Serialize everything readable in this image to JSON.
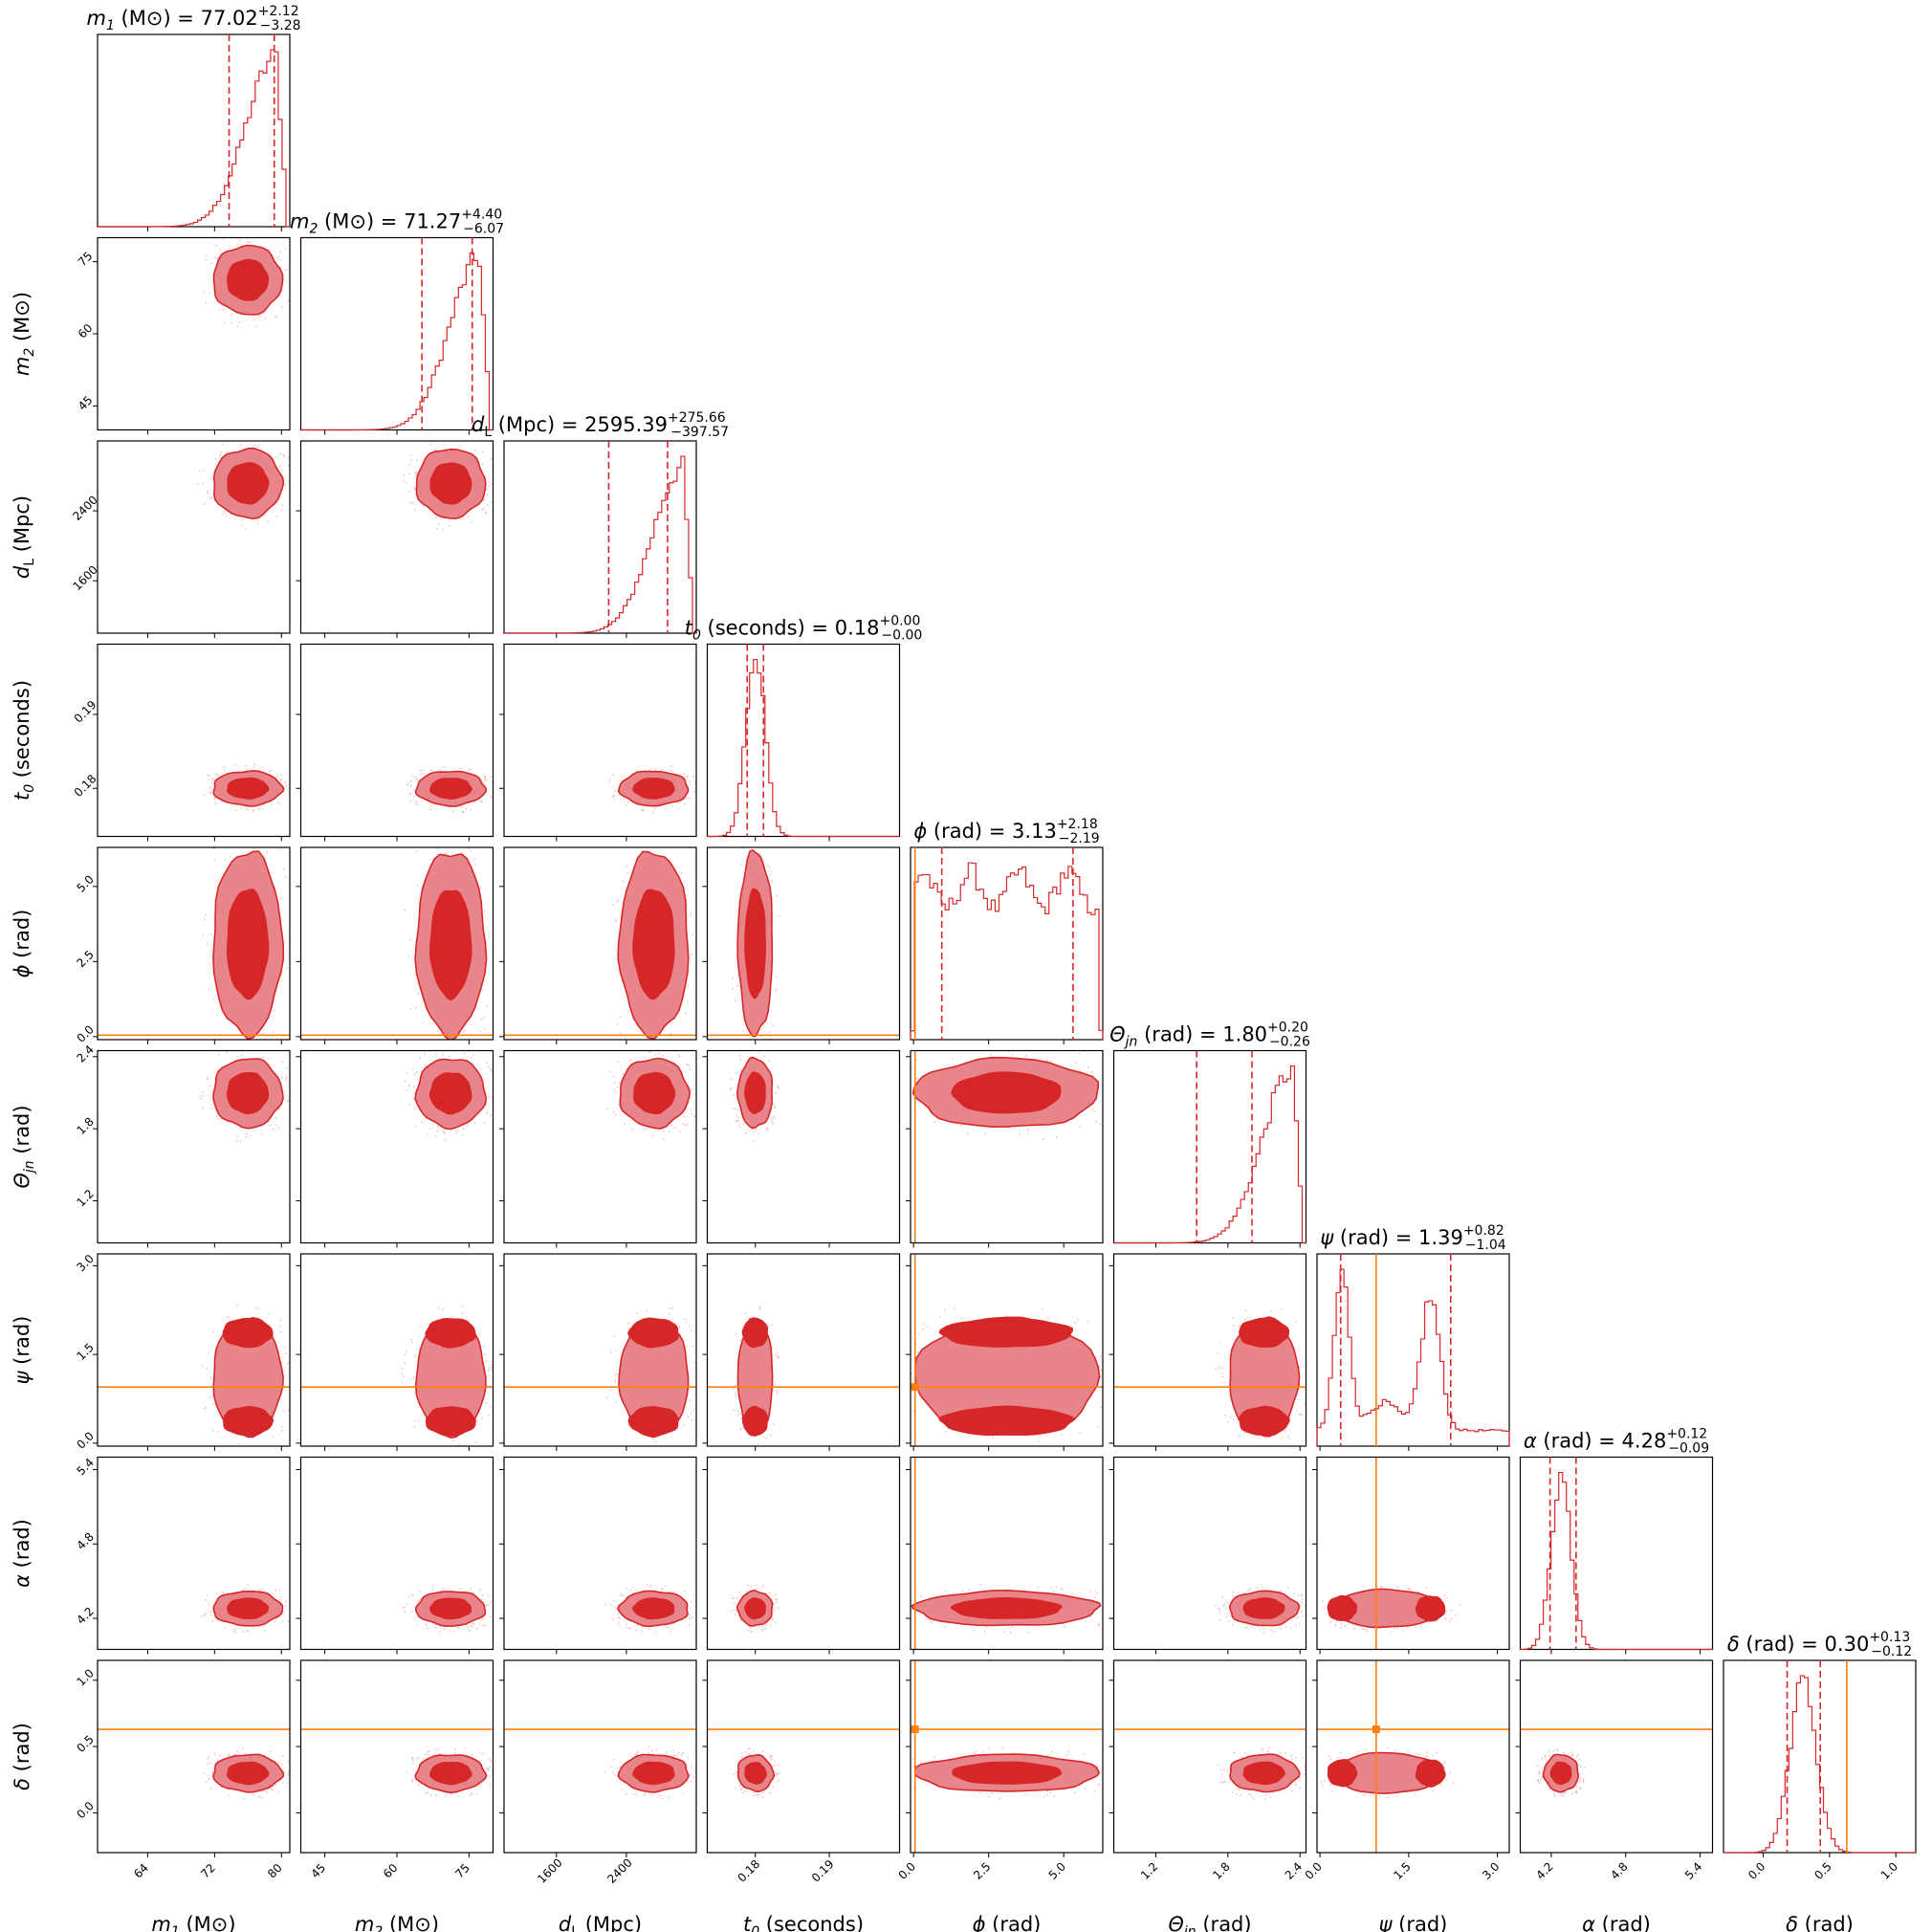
{
  "chart_data": {
    "type": "corner",
    "description_parameters": [
      {
        "key": "m1",
        "label": "m_1 (M_⊙)",
        "title": "m_1 (M_⊙) = 77.02 +2.12 -3.28",
        "median": 77.02,
        "err_plus": 2.12,
        "err_minus": 3.28,
        "range": [
          58,
          81
        ],
        "ticks": [
          64,
          72,
          80
        ],
        "mode": "right",
        "sigma": 4.5,
        "truth": null
      },
      {
        "key": "m2",
        "label": "m_2 (M_⊙)",
        "title": "m_2 (M_⊙) = 71.27 +4.40 -6.07",
        "median": 71.27,
        "err_plus": 4.4,
        "err_minus": 6.07,
        "range": [
          40,
          80
        ],
        "ticks": [
          45,
          60,
          75
        ],
        "mode": "right",
        "sigma": 6,
        "truth": null
      },
      {
        "key": "dL",
        "label": "d_L (Mpc)",
        "title": "d_L (Mpc) = 2595.39 +275.66 -397.57",
        "median": 2595.39,
        "err_plus": 275.66,
        "err_minus": 397.57,
        "range": [
          1000,
          3200
        ],
        "ticks": [
          1600,
          2400
        ],
        "mode": "right",
        "sigma": 420,
        "truth": null
      },
      {
        "key": "t0",
        "label": "t_0 (seconds)",
        "title": "t_0 (seconds) = 0.18 +0.00 -0.00",
        "median": 0.18,
        "err_plus": 0.0,
        "err_minus": 0.0,
        "range": [
          0.1735,
          0.1995
        ],
        "ticks": [
          0.18,
          0.19
        ],
        "mode": "normal",
        "sigma": 0.0013,
        "truth": null
      },
      {
        "key": "phi",
        "label": "ϕ (rad)",
        "title": "ϕ (rad) = 3.13 +2.18 -2.19",
        "median": 3.13,
        "err_plus": 2.18,
        "err_minus": 2.19,
        "range": [
          -0.1,
          6.3
        ],
        "ticks": [
          0.0,
          2.5,
          5.0
        ],
        "mode": "uniform",
        "sigma": 0,
        "truth": 0.05
      },
      {
        "key": "theta",
        "label": "Θ_jn (rad)",
        "title": "Θ_jn (rad) = 1.80 +0.20 -0.26",
        "median": 1.8,
        "err_plus": 0.2,
        "err_minus": 0.26,
        "range": [
          0.85,
          2.45
        ],
        "ticks": [
          1.2,
          1.8,
          2.4
        ],
        "mode": "right",
        "sigma": 0.3,
        "truth": null
      },
      {
        "key": "psi",
        "label": "ψ (rad)",
        "title": "ψ (rad) = 1.39 +0.82 -1.04",
        "median": 1.39,
        "err_plus": 0.82,
        "err_minus": 1.04,
        "range": [
          -0.05,
          3.2
        ],
        "ticks": [
          0.0,
          1.5,
          3.0
        ],
        "mode": "bimodal",
        "sigma": 0.3,
        "truth": 0.95
      },
      {
        "key": "alpha",
        "label": "α (rad)",
        "title": "α (rad) = 4.28 +0.12 -0.09",
        "median": 4.28,
        "err_plus": 0.12,
        "err_minus": 0.09,
        "range": [
          3.95,
          5.5
        ],
        "ticks": [
          4.2,
          4.8,
          5.4
        ],
        "mode": "normal",
        "sigma": 0.08,
        "truth": null
      },
      {
        "key": "delta",
        "label": "δ (rad)",
        "title": "δ (rad) = 0.30 +0.13 -0.12",
        "median": 0.3,
        "err_plus": 0.13,
        "err_minus": 0.12,
        "range": [
          -0.3,
          1.15
        ],
        "ticks": [
          0.0,
          0.5,
          1.0
        ],
        "mode": "normal",
        "sigma": 0.1,
        "truth": 0.63
      }
    ],
    "label_parts": [
      {
        "sym": "m",
        "sub": "1",
        "unit": "(M⊙)"
      },
      {
        "sym": "m",
        "sub": "2",
        "unit": "(M⊙)"
      },
      {
        "sym": "d",
        "sub": "L",
        "unit": "(Mpc)"
      },
      {
        "sym": "t",
        "sub": "0",
        "unit": "(seconds)"
      },
      {
        "sym": "ϕ",
        "sub": "",
        "unit": "(rad)"
      },
      {
        "sym": "Θ",
        "sub": "jn",
        "unit": "(rad)"
      },
      {
        "sym": "ψ",
        "sub": "",
        "unit": "(rad)"
      },
      {
        "sym": "α",
        "sub": "",
        "unit": "(rad)"
      },
      {
        "sym": "δ",
        "sub": "",
        "unit": "(rad)"
      }
    ],
    "title_values": [
      {
        "value": "77.02",
        "plus": "+2.12",
        "minus": "−3.28"
      },
      {
        "value": "71.27",
        "plus": "+4.40",
        "minus": "−6.07"
      },
      {
        "value": "2595.39",
        "plus": "+275.66",
        "minus": "−397.57"
      },
      {
        "value": "0.18",
        "plus": "+0.00",
        "minus": "−0.00"
      },
      {
        "value": "3.13",
        "plus": "+2.18",
        "minus": "−2.19"
      },
      {
        "value": "1.80",
        "plus": "+0.20",
        "minus": "−0.26"
      },
      {
        "value": "1.39",
        "plus": "+0.82",
        "minus": "−1.04"
      },
      {
        "value": "4.28",
        "plus": "+0.12",
        "minus": "−0.09"
      },
      {
        "value": "0.30",
        "plus": "+0.13",
        "minus": "−0.12"
      }
    ],
    "colors": {
      "posterior": "#d62728",
      "posterior_light": "#e8858a",
      "truth": "#ff7f0e",
      "frame": "#000000"
    }
  }
}
